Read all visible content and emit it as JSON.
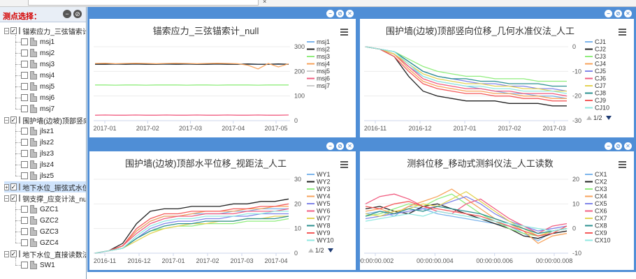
{
  "tree": {
    "title": "测点选择：",
    "groups": [
      {
        "label": "锚索应力_三弦锚索计_null",
        "expanded": true,
        "checked": true,
        "items": [
          "msj1",
          "msj2",
          "msj3",
          "msj4",
          "msj5",
          "msj6",
          "msj7"
        ]
      },
      {
        "label": "围护墙(边坡)顶部竖向位移_几何水准仪法_人工",
        "expanded": true,
        "checked": true,
        "items": [
          "jlsz1",
          "jlsz2",
          "jlsz3",
          "jlsz4",
          "jlsz5"
        ]
      },
      {
        "label": "地下水位_振弦式水位计",
        "expanded": false,
        "checked": true,
        "selected": true,
        "items": []
      },
      {
        "label": "钢支撑_应变计法_null",
        "expanded": true,
        "checked": true,
        "items": [
          "GZC1",
          "GZC2",
          "GZC3",
          "GZC4"
        ]
      },
      {
        "label": "地下水位_直接读数法",
        "expanded": true,
        "checked": true,
        "items": [
          "SW1"
        ]
      }
    ]
  },
  "panels": [
    {
      "id": "p1",
      "chart_data": {
        "type": "line",
        "title": "锚索应力_三弦锚索计_null",
        "xlabel": "",
        "ylabel": "",
        "x_ticks": [
          "2017-01",
          "2017-02",
          "2017-03",
          "2017-04",
          "2017-05"
        ],
        "y_axis_side": "right",
        "ylim": [
          0,
          300
        ],
        "y_ticks": [
          0,
          100,
          200,
          300
        ],
        "legend": "right",
        "series": [
          {
            "name": "msj1",
            "color": "#7cb5ec",
            "values": [
              228,
              228,
              229,
              228,
              229,
              228,
              229,
              228,
              228,
              229,
              228,
              228,
              229,
              228,
              229,
              228,
              228,
              228,
              229,
              228
            ]
          },
          {
            "name": "msj2",
            "color": "#222222",
            "values": [
              229,
              229,
              230,
              229,
              230,
              229,
              229,
              230,
              229,
              230,
              229,
              229,
              230,
              229,
              229,
              230,
              229,
              229,
              230,
              229
            ]
          },
          {
            "name": "msj3",
            "color": "#90ed7d",
            "values": [
              145,
              145,
              144,
              145,
              145,
              144,
              145,
              145,
              145,
              144,
              145,
              145,
              144,
              145,
              145,
              145,
              144,
              145,
              145,
              145
            ]
          },
          {
            "name": "msj4",
            "color": "#f7a35c",
            "values": [
              232,
              233,
              231,
              232,
              233,
              232,
              231,
              232,
              233,
              232,
              231,
              232,
              233,
              232,
              231,
              225,
              210,
              232,
              218,
              231
            ]
          },
          {
            "name": "msj5",
            "color": "#8085e9",
            "values": [
              120,
              121,
              120,
              120,
              121,
              120,
              121,
              120,
              120,
              121,
              120,
              121,
              120,
              120,
              121,
              120,
              120,
              121,
              120,
              120
            ],
            "disabled": true
          },
          {
            "name": "msj6",
            "color": "#f15c80",
            "values": [
              22,
              23,
              22,
              22,
              23,
              22,
              22,
              23,
              22,
              22,
              23,
              22,
              22,
              23,
              22,
              22,
              23,
              22,
              22,
              23
            ]
          },
          {
            "name": "msj7",
            "color": "#e4d354",
            "values": [],
            "disabled": true
          }
        ]
      }
    },
    {
      "id": "p2",
      "chart_data": {
        "type": "line",
        "title": "围护墙(边坡)顶部竖向位移_几何水准仪法_人工",
        "x_ticks": [
          "2016-11",
          "2016-12",
          "2017-01",
          "2017-02",
          "2017-03"
        ],
        "y_axis_side": "right",
        "ylim": [
          -30,
          0
        ],
        "y_ticks": [
          0,
          -10,
          -20,
          -30
        ],
        "legend": "right",
        "pager": "1/2",
        "series": [
          {
            "name": "CJ1",
            "color": "#7cb5ec",
            "values": [
              0,
              -1,
              -3,
              -8,
              -12,
              -14,
              -15,
              -16,
              -17,
              -18,
              -19,
              -19,
              -20,
              -20,
              -21
            ]
          },
          {
            "name": "CJ2",
            "color": "#222222",
            "values": [
              0,
              -1,
              -4,
              -12,
              -18,
              -20,
              -21,
              -22,
              -22,
              -22,
              -23,
              -23,
              -23,
              -24,
              -24
            ]
          },
          {
            "name": "CJ3",
            "color": "#90ed7d",
            "values": [
              0,
              -1,
              -2,
              -5,
              -8,
              -10,
              -11,
              -12,
              -12,
              -13,
              -13,
              -13,
              -14,
              -14,
              -14
            ]
          },
          {
            "name": "CJ4",
            "color": "#f7a35c",
            "values": [
              0,
              -1,
              -3,
              -9,
              -14,
              -16,
              -17,
              -18,
              -18,
              -19,
              -19,
              -20,
              -20,
              -21,
              -21
            ]
          },
          {
            "name": "CJ5",
            "color": "#8085e9",
            "values": [
              0,
              -1,
              -2,
              -6,
              -10,
              -12,
              -13,
              -14,
              -15,
              -15,
              -16,
              -16,
              -17,
              -17,
              -18
            ]
          },
          {
            "name": "CJ6",
            "color": "#f15c80",
            "values": [
              0,
              -1,
              -3,
              -8,
              -13,
              -15,
              -16,
              -17,
              -17,
              -18,
              -18,
              -19,
              -19,
              -19,
              -20
            ]
          },
          {
            "name": "CJ7",
            "color": "#e4d354",
            "values": [
              0,
              -1,
              -3,
              -7,
              -11,
              -13,
              -14,
              -15,
              -15,
              -16,
              -16,
              -17,
              -17,
              -18,
              -18
            ]
          },
          {
            "name": "CJ8",
            "color": "#2b908f",
            "values": [
              0,
              -1,
              -2,
              -6,
              -10,
              -12,
              -13,
              -13,
              -14,
              -14,
              -15,
              -15,
              -15,
              -16,
              -16
            ]
          },
          {
            "name": "CJ9",
            "color": "#f45b5b",
            "values": [
              0,
              -1,
              -4,
              -10,
              -15,
              -17,
              -18,
              -19,
              -19,
              -20,
              -20,
              -21,
              -21,
              -22,
              -22
            ]
          },
          {
            "name": "CJ10",
            "color": "#91e8e1",
            "values": [
              0,
              -1,
              -2,
              -7,
              -12,
              -14,
              -15,
              -16,
              -16,
              -17,
              -17,
              -18,
              -18,
              -18,
              -19
            ]
          }
        ]
      }
    },
    {
      "id": "p3",
      "chart_data": {
        "type": "line",
        "title": "围护墙(边坡)顶部水平位移_视距法_人工",
        "x_ticks": [
          "2016-11",
          "2016-12",
          "2017-01",
          "2017-02",
          "2017-03",
          "2017-04"
        ],
        "y_axis_side": "right",
        "ylim": [
          0,
          30
        ],
        "y_ticks": [
          0,
          10,
          20,
          30
        ],
        "legend": "right",
        "pager": "1/2",
        "series": [
          {
            "name": "WY1",
            "color": "#7cb5ec",
            "values": [
              0,
              1,
              3,
              9,
              13,
              15,
              15,
              16,
              16,
              16,
              17,
              17,
              18,
              18,
              18
            ]
          },
          {
            "name": "WY2",
            "color": "#222222",
            "values": [
              0,
              1,
              4,
              12,
              17,
              18,
              18,
              19,
              19,
              19,
              20,
              20,
              21,
              21,
              22
            ]
          },
          {
            "name": "WY3",
            "color": "#90ed7d",
            "values": [
              0,
              1,
              2,
              6,
              9,
              10,
              11,
              11,
              12,
              12,
              12,
              13,
              13,
              13,
              14
            ]
          },
          {
            "name": "WY4",
            "color": "#f7a35c",
            "values": [
              0,
              1,
              3,
              9,
              13,
              15,
              15,
              16,
              17,
              17,
              17,
              18,
              18,
              19,
              19
            ]
          },
          {
            "name": "WY5",
            "color": "#8085e9",
            "values": [
              0,
              1,
              2,
              6,
              10,
              12,
              13,
              13,
              14,
              14,
              15,
              15,
              16,
              16,
              16
            ]
          },
          {
            "name": "WY6",
            "color": "#f15c80",
            "values": [
              0,
              1,
              3,
              8,
              12,
              14,
              15,
              15,
              16,
              16,
              16,
              17,
              17,
              17,
              18
            ]
          },
          {
            "name": "WY7",
            "color": "#e4d354",
            "values": [
              0,
              1,
              2,
              5,
              8,
              10,
              11,
              12,
              12,
              13,
              13,
              14,
              14,
              15,
              15
            ]
          },
          {
            "name": "WY8",
            "color": "#2b908f",
            "values": [
              0,
              1,
              2,
              6,
              9,
              11,
              12,
              12,
              13,
              13,
              13,
              14,
              14,
              14,
              15
            ]
          },
          {
            "name": "WY9",
            "color": "#f45b5b",
            "values": [
              0,
              1,
              3,
              10,
              14,
              16,
              16,
              17,
              17,
              17,
              18,
              18,
              19,
              19,
              20
            ]
          },
          {
            "name": "WY10",
            "color": "#91e8e1",
            "values": [
              0,
              1,
              2,
              7,
              11,
              13,
              14,
              14,
              15,
              15,
              15,
              16,
              16,
              17,
              17
            ]
          }
        ]
      }
    },
    {
      "id": "p4",
      "chart_data": {
        "type": "line",
        "title": "测斜位移_移动式测斜仪法_人工读数",
        "x_ticks": [
          "00:00:00.002",
          "00:00:00.004",
          "00:00:00.006",
          "00:00:00.008"
        ],
        "y_axis_side": "right",
        "ylim": [
          -10,
          20
        ],
        "y_ticks": [
          20,
          10,
          0,
          -10
        ],
        "legend": "right",
        "series": [
          {
            "name": "CX1",
            "color": "#7cb5ec",
            "values": [
              6,
              7,
              5,
              9,
              8,
              6,
              5,
              4,
              3,
              2,
              1,
              -2,
              -5,
              -1,
              0
            ]
          },
          {
            "name": "CX2",
            "color": "#222222",
            "values": [
              8,
              9,
              7,
              6,
              9,
              10,
              8,
              6,
              4,
              2,
              0,
              -3,
              -4,
              -2,
              -1
            ]
          },
          {
            "name": "CX3",
            "color": "#90ed7d",
            "values": [
              5,
              6,
              8,
              10,
              9,
              12,
              14,
              10,
              6,
              3,
              0,
              -2,
              -3,
              -1,
              0
            ]
          },
          {
            "name": "CX4",
            "color": "#f7a35c",
            "values": [
              7,
              8,
              6,
              9,
              11,
              13,
              16,
              12,
              8,
              4,
              2,
              -1,
              -6,
              -3,
              -2
            ]
          },
          {
            "name": "CX5",
            "color": "#8085e9",
            "values": [
              4,
              5,
              6,
              7,
              8,
              9,
              11,
              13,
              10,
              6,
              3,
              1,
              -1,
              0,
              1
            ]
          },
          {
            "name": "CX6",
            "color": "#f15c80",
            "values": [
              10,
              13,
              14,
              12,
              9,
              7,
              6,
              10,
              12,
              8,
              4,
              1,
              -2,
              1,
              2
            ]
          },
          {
            "name": "CX7",
            "color": "#e4d354",
            "values": [
              6,
              5,
              7,
              8,
              10,
              9,
              12,
              15,
              11,
              7,
              3,
              0,
              -3,
              -1,
              0
            ]
          },
          {
            "name": "CX8",
            "color": "#2b908f",
            "values": [
              5,
              7,
              6,
              8,
              7,
              9,
              8,
              7,
              6,
              4,
              2,
              0,
              -2,
              -1,
              0
            ]
          },
          {
            "name": "CX9",
            "color": "#f45b5b",
            "values": [
              9,
              8,
              10,
              11,
              9,
              8,
              7,
              6,
              5,
              3,
              1,
              -1,
              -3,
              -2,
              1
            ]
          },
          {
            "name": "CX10",
            "color": "#91e8e1",
            "values": [
              3,
              4,
              5,
              6,
              5,
              7,
              6,
              5,
              4,
              3,
              2,
              1,
              0,
              -1,
              0
            ]
          }
        ]
      }
    }
  ]
}
